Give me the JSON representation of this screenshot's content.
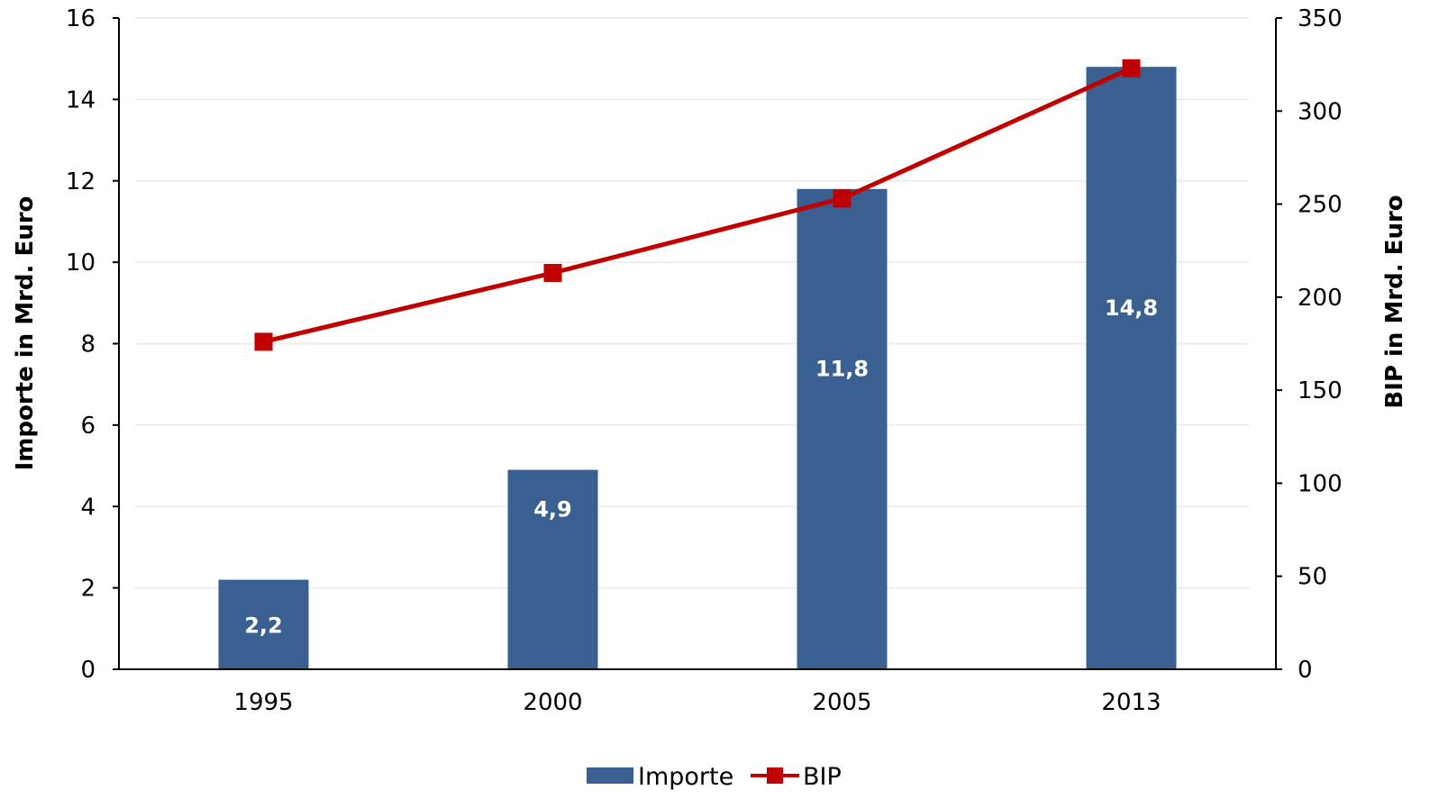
{
  "chart_data": {
    "type": "bar",
    "categories": [
      "1995",
      "2000",
      "2005",
      "2013"
    ],
    "series": [
      {
        "name": "Importe",
        "kind": "bar",
        "axis": "left",
        "values": [
          2.2,
          4.9,
          11.8,
          14.8
        ],
        "labels": [
          "2,2",
          "4,9",
          "11,8",
          "14,8"
        ]
      },
      {
        "name": "BIP",
        "kind": "line",
        "axis": "right",
        "marker": "square",
        "values": [
          176,
          213,
          253,
          323
        ]
      }
    ],
    "ylabel": "Importe in Mrd. Euro",
    "y2label": "BIP in Mrd. Euro",
    "ylim": [
      0,
      16
    ],
    "y2lim": [
      0,
      350
    ],
    "yticks": [
      "0",
      "2",
      "4",
      "6",
      "8",
      "10",
      "12",
      "14",
      "16"
    ],
    "y2ticks": [
      "0",
      "50",
      "100",
      "150",
      "200",
      "250",
      "300",
      "350"
    ],
    "legend_position": "bottom",
    "grid": true,
    "colors": {
      "bar": "#3a5f91",
      "line": "#c00000",
      "grid": "#eeeeee",
      "axis": "#000000"
    }
  }
}
